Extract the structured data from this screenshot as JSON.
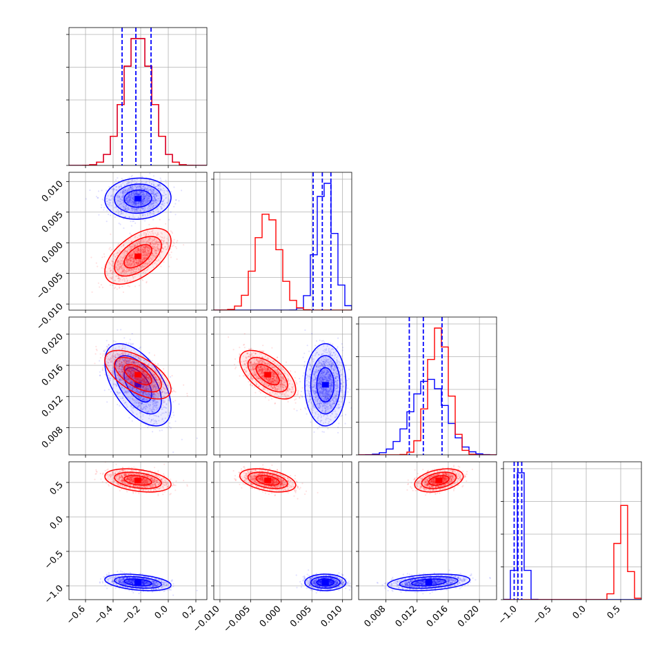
{
  "colors": {
    "series_a": "#0000ff",
    "series_b": "#ff0000",
    "grid": "#b0b0b0",
    "frame": "#000000"
  },
  "parameters": [
    {
      "range": [
        -0.72,
        0.28
      ],
      "ticks": [
        -0.6,
        -0.4,
        -0.2,
        0.0,
        0.2
      ],
      "tick_labels": [
        "−0.6",
        "−0.4",
        "−0.2",
        "0.0",
        "0.2"
      ]
    },
    {
      "range": [
        -0.011,
        0.0115
      ],
      "ticks": [
        -0.01,
        -0.005,
        0.0,
        0.005,
        0.01
      ],
      "tick_labels": [
        "−0.010",
        "−0.005",
        "0.000",
        "0.005",
        "0.010"
      ]
    },
    {
      "range": [
        0.0045,
        0.0222
      ],
      "ticks": [
        0.008,
        0.012,
        0.016,
        0.02
      ],
      "tick_labels": [
        "0.008",
        "0.012",
        "0.016",
        "0.020"
      ]
    },
    {
      "range": [
        -1.2,
        0.8
      ],
      "ticks": [
        -1.0,
        -0.5,
        0.0,
        0.5
      ],
      "tick_labels": [
        "−1.0",
        "−0.5",
        "0.0",
        "0.5"
      ]
    }
  ],
  "chart_data": {
    "type": "corner",
    "grid": true,
    "series": [
      {
        "name": "",
        "color": "#0000ff",
        "means": [
          -0.22,
          0.0072,
          0.0135,
          -0.95
        ],
        "stds": [
          0.1,
          0.0014,
          0.0022,
          0.05
        ],
        "correlations": {
          "0-1": 0.05,
          "0-2": -0.55,
          "0-3": -0.35,
          "1-2": 0.0,
          "1-3": 0.0,
          "2-3": 0.3
        },
        "quantile_lines": [
          [
            -0.335,
            -0.235,
            -0.125
          ],
          [
            0.0052,
            0.0067,
            0.0081
          ],
          [
            0.011,
            0.0128,
            0.0152
          ],
          [
            -1.045,
            -0.99,
            -0.935
          ]
        ]
      },
      {
        "name": "",
        "color": "#ff0000",
        "means": [
          -0.22,
          -0.0022,
          0.0148,
          0.53
        ],
        "stds": [
          0.1,
          0.0019,
          0.0013,
          0.07
        ],
        "correlations": {
          "0-1": 0.55,
          "0-2": -0.6,
          "0-3": -0.35,
          "1-2": -0.6,
          "1-3": -0.4,
          "2-3": 0.35
        },
        "quantile_lines": []
      }
    ]
  }
}
